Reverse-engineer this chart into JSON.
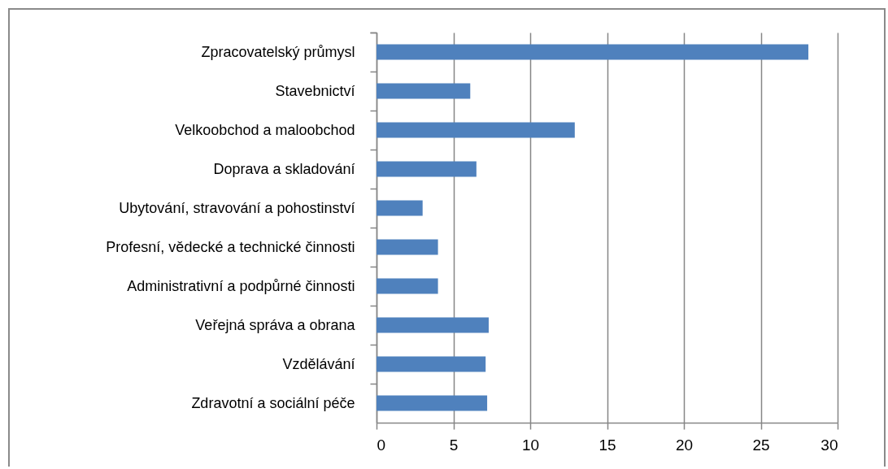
{
  "chart_data": {
    "type": "bar",
    "orientation": "horizontal",
    "categories": [
      "Zpracovatelský průmysl",
      "Stavebnictví",
      "Velkoobchod a maloobchod",
      "Doprava a skladování",
      "Ubytování, stravování a pohostinství",
      "Profesní, vědecké a technické činnosti",
      "Administrativní a podpůrné činnosti",
      "Veřejná správa a obrana",
      "Vzdělávání",
      "Zdravotní a sociální péče"
    ],
    "values": [
      28.1,
      6.1,
      12.9,
      6.5,
      3.0,
      4.0,
      4.0,
      7.3,
      7.1,
      7.2
    ],
    "color": "#4f81bd",
    "xlim": [
      0,
      30
    ],
    "xticks": [
      0,
      5,
      10,
      15,
      20,
      25,
      30
    ],
    "grid": "x"
  }
}
